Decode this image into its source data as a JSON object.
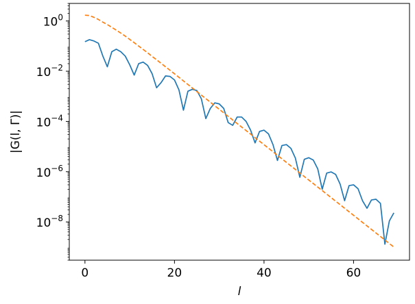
{
  "chart_data": {
    "type": "line",
    "xlabel": "l",
    "ylabel": "|G(l, Γ)|",
    "xscale": "linear",
    "yscale": "log",
    "xlim": [
      -3.5,
      72.5
    ],
    "ylim": [
      3e-10,
      5
    ],
    "grid": false,
    "x_ticks": [
      0,
      20,
      40,
      60
    ],
    "y_ticks": [
      {
        "value": 1e-08,
        "base": "10",
        "exp": "−8"
      },
      {
        "value": 1e-06,
        "base": "10",
        "exp": "−6"
      },
      {
        "value": 0.0001,
        "base": "10",
        "exp": "−4"
      },
      {
        "value": 0.01,
        "base": "10",
        "exp": "−2"
      },
      {
        "value": 1,
        "base": "10",
        "exp": "0"
      }
    ],
    "series": [
      {
        "color": "#1f77b4",
        "style": "solid",
        "x": [
          0,
          1,
          2,
          3,
          4,
          5,
          6,
          7,
          8,
          9,
          10,
          11,
          12,
          13,
          14,
          15,
          16,
          17,
          18,
          19,
          20,
          21,
          22,
          23,
          24,
          25,
          26,
          27,
          28,
          29,
          30,
          31,
          32,
          33,
          34,
          35,
          36,
          37,
          38,
          39,
          40,
          41,
          42,
          43,
          44,
          45,
          46,
          47,
          48,
          49,
          50,
          51,
          52,
          53,
          54,
          55,
          56,
          57,
          58,
          59,
          60,
          61,
          62,
          63,
          64,
          65,
          66,
          67,
          68,
          69
        ],
        "y": [
          0.15,
          0.18,
          0.16,
          0.13,
          0.04,
          0.015,
          0.06,
          0.075,
          0.06,
          0.04,
          0.018,
          0.007,
          0.02,
          0.023,
          0.017,
          0.008,
          0.0022,
          0.0035,
          0.0065,
          0.0062,
          0.0045,
          0.0018,
          0.00028,
          0.0016,
          0.0019,
          0.0017,
          0.0008,
          0.00013,
          0.00033,
          0.00055,
          0.0005,
          0.00033,
          9e-05,
          7e-05,
          0.00015,
          0.00015,
          0.0001,
          4.5e-05,
          1.4e-05,
          4e-05,
          4.5e-05,
          3.2e-05,
          1.2e-05,
          2.8e-06,
          1.1e-05,
          1.2e-05,
          8.5e-06,
          3.5e-06,
          6e-07,
          3.1e-06,
          3.6e-06,
          2.9e-06,
          1.3e-06,
          2e-07,
          8.8e-07,
          9.8e-07,
          7.8e-07,
          3.2e-07,
          7e-08,
          2.8e-07,
          3e-07,
          2.1e-07,
          7e-08,
          3.5e-08,
          7.5e-08,
          8e-08,
          5.5e-08,
          1.3e-09,
          1.1e-08,
          2.3e-08
        ]
      },
      {
        "color": "#ff7f0e",
        "style": "dashed",
        "x": [
          0,
          1,
          2,
          3,
          4,
          5,
          6,
          7,
          8,
          9,
          10,
          11,
          12,
          13,
          14,
          15,
          16,
          17,
          18,
          19,
          20,
          21,
          22,
          23,
          24,
          25,
          26,
          27,
          28,
          29,
          30,
          31,
          32,
          33,
          34,
          35,
          36,
          37,
          38,
          39,
          40,
          41,
          42,
          43,
          44,
          45,
          46,
          47,
          48,
          49,
          50,
          51,
          52,
          53,
          54,
          55,
          56,
          57,
          58,
          59,
          60,
          61,
          62,
          63,
          64,
          65,
          66,
          67,
          68,
          69
        ],
        "y": [
          1.7,
          1.65,
          1.4,
          1.15,
          0.9,
          0.72,
          0.56,
          0.43,
          0.33,
          0.25,
          0.185,
          0.137,
          0.1,
          0.074,
          0.054,
          0.039,
          0.0285,
          0.0207,
          0.015,
          0.0109,
          0.0079,
          0.0057,
          0.0041,
          0.00297,
          0.00214,
          0.00155,
          0.00112,
          0.00081,
          0.000585,
          0.000422,
          0.000305,
          0.00022,
          0.000159,
          0.000115,
          8.3e-05,
          6e-05,
          4.35e-05,
          3.14e-05,
          2.27e-05,
          1.64e-05,
          1.19e-05,
          8.6e-06,
          6.2e-06,
          4.5e-06,
          3.25e-06,
          2.35e-06,
          1.7e-06,
          1.23e-06,
          8.9e-07,
          6.4e-07,
          4.65e-07,
          3.37e-07,
          2.44e-07,
          1.77e-07,
          1.28e-07,
          9.25e-08,
          6.7e-08,
          4.85e-08,
          3.51e-08,
          2.54e-08,
          1.84e-08,
          1.33e-08,
          9.6e-09,
          6.95e-09,
          5.03e-09,
          3.64e-09,
          2.64e-09,
          1.91e-09,
          1.38e-09,
          1e-09
        ]
      }
    ]
  }
}
